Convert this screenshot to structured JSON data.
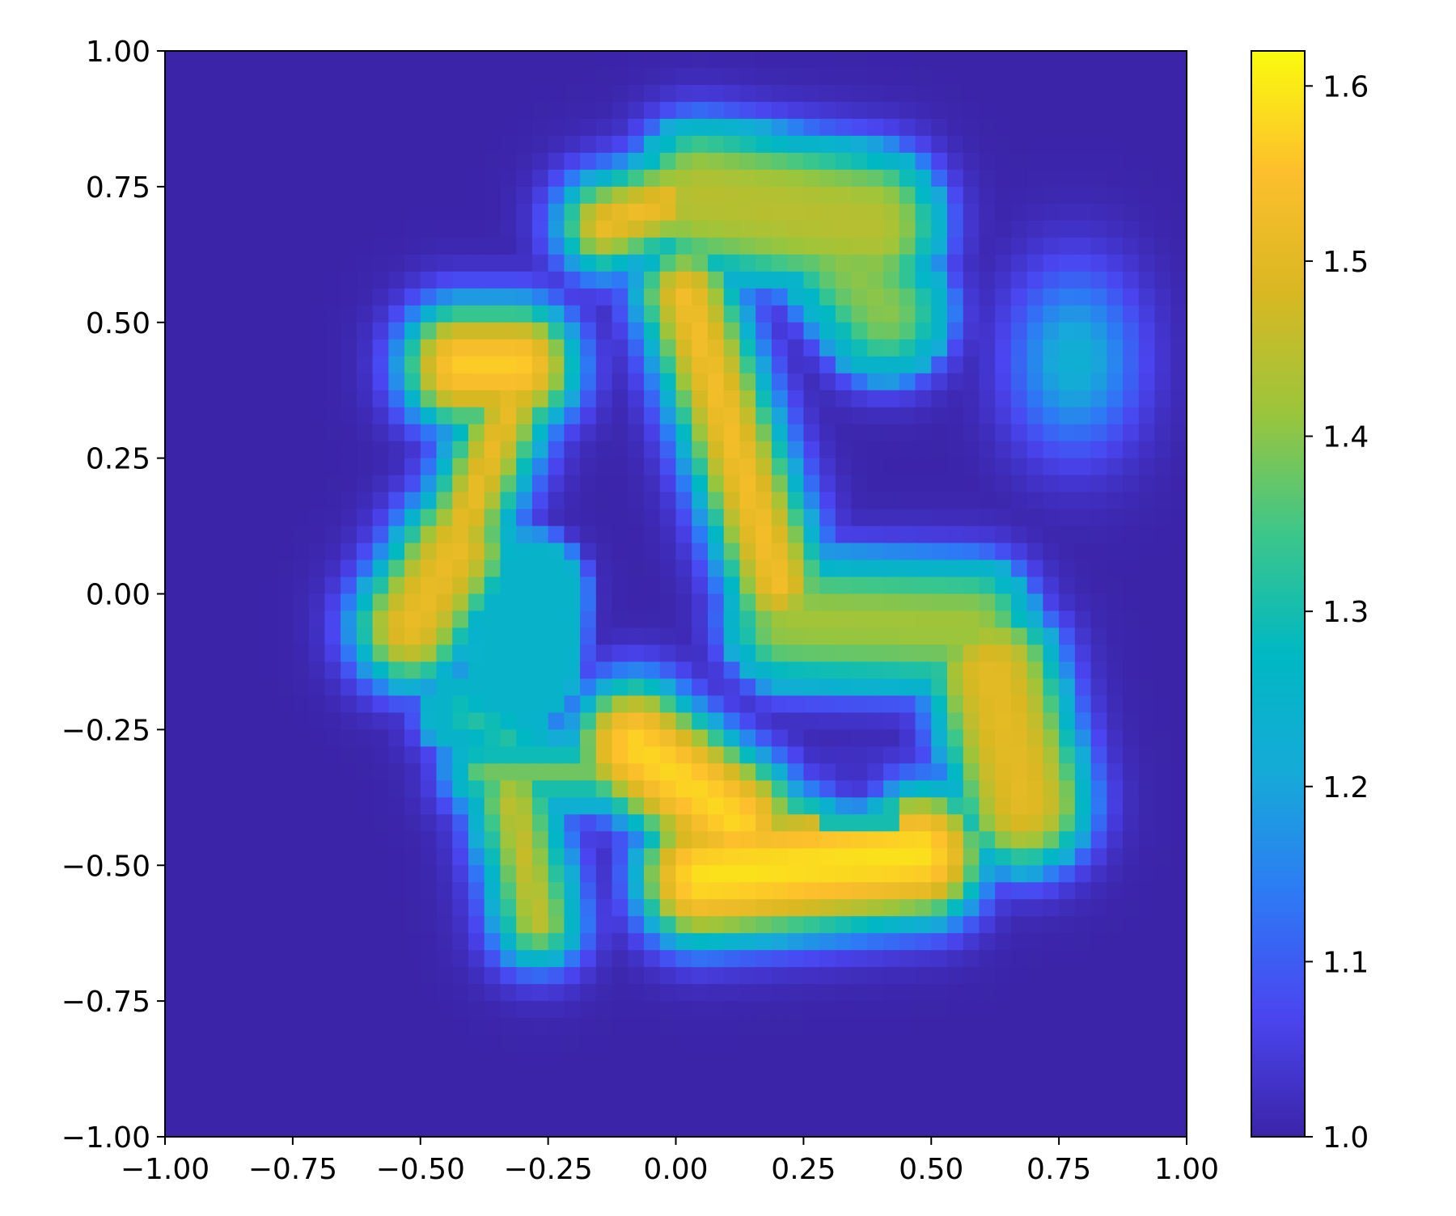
{
  "chart_data": {
    "type": "heatmap",
    "title": "",
    "xlabel": "",
    "ylabel": "",
    "xlim": [
      -1.0,
      1.0
    ],
    "ylim": [
      -1.0,
      1.0
    ],
    "grid": false,
    "x_ticks": [
      -1.0,
      -0.75,
      -0.5,
      -0.25,
      0.0,
      0.25,
      0.5,
      0.75,
      1.0
    ],
    "x_tick_labels": [
      "−1.00",
      "−0.75",
      "−0.50",
      "−0.25",
      "0.00",
      "0.25",
      "0.50",
      "0.75",
      "1.00"
    ],
    "y_ticks": [
      -1.0,
      -0.75,
      -0.5,
      -0.25,
      0.0,
      0.25,
      0.5,
      0.75,
      1.0
    ],
    "y_tick_labels": [
      "−1.00",
      "−0.75",
      "−0.50",
      "−0.25",
      "0.00",
      "0.25",
      "0.50",
      "0.75",
      "1.00"
    ],
    "colorbar": {
      "range": [
        1.0,
        1.62
      ],
      "ticks": [
        1.0,
        1.1,
        1.2,
        1.3,
        1.4,
        1.5,
        1.6
      ],
      "tick_labels": [
        "1.0",
        "1.1",
        "1.2",
        "1.3",
        "1.4",
        "1.5",
        "1.6"
      ],
      "colormap_stops": [
        "#3b24a8",
        "#4a45f0",
        "#2e79f5",
        "#16aad8",
        "#00b8c3",
        "#3dc68a",
        "#9bc53c",
        "#d9b822",
        "#fdbf2d",
        "#f9fb0e"
      ]
    },
    "background_value": 1.0,
    "grid_resolution": 64,
    "components": [
      {
        "label": "upper-left blob",
        "value": 1.58,
        "segment": [
          [
            -0.42,
            0.42
          ],
          [
            -0.31,
            0.42
          ]
        ],
        "radius": 0.105
      },
      {
        "label": "upper-left neck",
        "value": 1.56,
        "segment": [
          [
            -0.31,
            0.38
          ],
          [
            -0.42,
            0.12
          ]
        ],
        "radius": 0.07
      },
      {
        "label": "left lobe",
        "value": 1.53,
        "segment": [
          [
            -0.43,
            0.08
          ],
          [
            -0.52,
            -0.06
          ]
        ],
        "radius": 0.1
      },
      {
        "label": "top-left arm",
        "value": 1.56,
        "segment": [
          [
            -0.14,
            0.68
          ],
          [
            -0.02,
            0.72
          ]
        ],
        "radius": 0.075
      },
      {
        "label": "top plate",
        "value": 1.45,
        "segment": [
          [
            0.05,
            0.73
          ],
          [
            0.38,
            0.68
          ]
        ],
        "radius": 0.13
      },
      {
        "label": "top plate right",
        "value": 1.41,
        "segment": [
          [
            0.3,
            0.65
          ],
          [
            0.41,
            0.52
          ]
        ],
        "radius": 0.11
      },
      {
        "label": "central column",
        "value": 1.56,
        "segment": [
          [
            0.02,
            0.55
          ],
          [
            0.2,
            0.02
          ]
        ],
        "radius": 0.085
      },
      {
        "label": "right ring upper",
        "value": 1.43,
        "segment": [
          [
            0.22,
            -0.05
          ],
          [
            0.58,
            -0.06
          ]
        ],
        "radius": 0.11
      },
      {
        "label": "right ring side",
        "value": 1.51,
        "segment": [
          [
            0.62,
            -0.15
          ],
          [
            0.68,
            -0.38
          ]
        ],
        "radius": 0.12
      },
      {
        "label": "lower arc",
        "value": 1.6,
        "segment": [
          [
            0.05,
            -0.52
          ],
          [
            0.48,
            -0.48
          ]
        ],
        "radius": 0.115
      },
      {
        "label": "lower middle",
        "value": 1.59,
        "segment": [
          [
            -0.08,
            -0.28
          ],
          [
            0.12,
            -0.42
          ]
        ],
        "radius": 0.11
      },
      {
        "label": "lower-left leg",
        "value": 1.5,
        "segment": [
          [
            -0.32,
            -0.38
          ],
          [
            -0.27,
            -0.6
          ]
        ],
        "radius": 0.07
      },
      {
        "label": "left bridge",
        "value": 1.45,
        "segment": [
          [
            -0.38,
            -0.33
          ],
          [
            -0.12,
            -0.33
          ]
        ],
        "radius": 0.05
      },
      {
        "label": "left low blob",
        "value": 1.35,
        "segment": [
          [
            -0.42,
            -0.22
          ],
          [
            -0.32,
            -0.27
          ]
        ],
        "radius": 0.06
      },
      {
        "label": "small blue blob",
        "value": 1.13,
        "segment": [
          [
            -0.29,
            0.0
          ],
          [
            -0.3,
            -0.14
          ]
        ],
        "radius": 0.09
      },
      {
        "label": "right blue blob",
        "value": 1.23,
        "center": [
          0.78,
          0.43
        ],
        "sigma": 0.09
      }
    ],
    "holes": [
      {
        "label": "ring hole",
        "center": [
          0.35,
          -0.34
        ],
        "radius": 0.06,
        "value": 1.02
      }
    ]
  }
}
